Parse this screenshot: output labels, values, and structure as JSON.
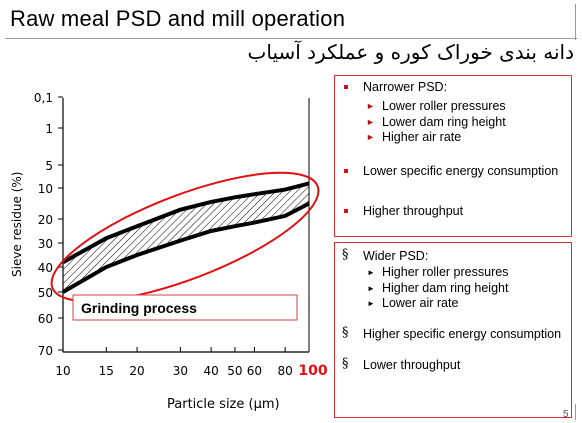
{
  "title": "Raw meal PSD and mill operation",
  "subtitle": "دانه بندی خوراک کوره و عملکرد آسیاب",
  "chart": {
    "ylabel": "Sieve residue (%)",
    "xlabel": "Particle size  (µm)",
    "y_ticks": [
      "0,1",
      "1",
      "5",
      "10",
      "20",
      "30",
      "40",
      "50",
      "60",
      "70"
    ],
    "x_ticks": [
      "10",
      "15",
      "20",
      "30",
      "40",
      "50",
      "60",
      "80",
      "100"
    ],
    "annotation": "Grinding process"
  },
  "chart_data": {
    "type": "area",
    "xlabel": "Particle size  (µm)",
    "ylabel": "Sieve residue (%)",
    "x_scale": "log",
    "xlim": [
      10,
      100
    ],
    "series": [
      {
        "x": [
          10,
          15,
          20,
          30,
          40,
          50,
          60,
          80,
          100
        ],
        "values": [
          38,
          28,
          23,
          17,
          14.5,
          13,
          12,
          10.5,
          9
        ]
      },
      {
        "x": [
          10,
          15,
          20,
          30,
          40,
          50,
          60,
          80,
          100
        ],
        "values": [
          50,
          40,
          35,
          29,
          25,
          23,
          21.5,
          19,
          15
        ]
      }
    ]
  },
  "panel1": {
    "heading": "Narrower PSD:",
    "subitems": [
      "Lower roller pressures",
      "Lower dam ring height",
      "Higher air rate"
    ],
    "item2": "Lower specific energy consumption",
    "item3": "Higher throughput"
  },
  "panel2": {
    "heading": "Wider PSD:",
    "subitems": [
      "Higher roller pressures",
      "Higher dam ring height",
      "Lower air rate"
    ],
    "item2": "Higher specific energy consumption",
    "item3": "Lower throughput"
  },
  "page_number": "5"
}
